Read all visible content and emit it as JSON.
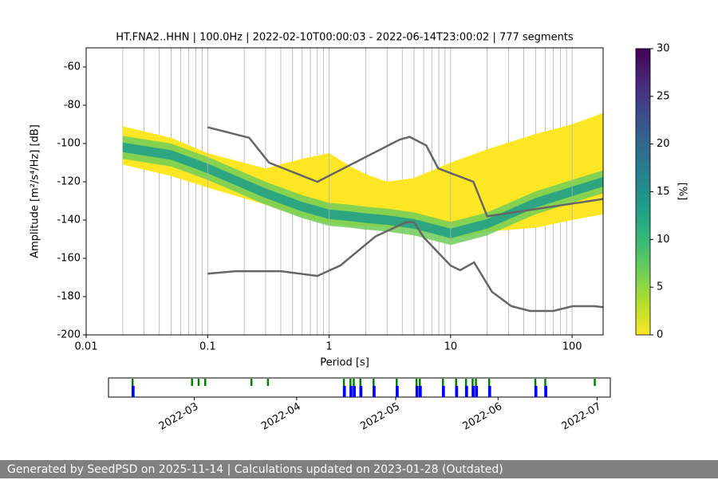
{
  "chart_data": [
    {
      "type": "ppsd",
      "title": "HT.FNA2..HHN | 100.0Hz | 2022-02-10T00:00:03 - 2022-06-14T23:00:02 | 777 segments",
      "xlabel": "Period [s]",
      "ylabel": "Amplitude [m²/s⁴/Hz] [dB]",
      "log_x": true,
      "xlim": [
        0.01,
        180
      ],
      "ylim": [
        -200,
        -50
      ],
      "xticks": [
        0.01,
        0.1,
        1,
        10,
        100
      ],
      "yticks": [
        -200,
        -180,
        -160,
        -140,
        -120,
        -100,
        -80,
        -60
      ],
      "xgrid": [
        0.02,
        0.03,
        0.04,
        0.05,
        0.06,
        0.07,
        0.08,
        0.09,
        0.2,
        0.3,
        0.4,
        0.5,
        0.6,
        0.7,
        0.8,
        0.9,
        2,
        3,
        4,
        5,
        6,
        7,
        8,
        9,
        20,
        30,
        40,
        50,
        60,
        70,
        80,
        90
      ],
      "density": {
        "periods": [
          0.02,
          0.05,
          0.1,
          0.3,
          0.6,
          1,
          1.5,
          2,
          3,
          5,
          10,
          20,
          50,
          100,
          180
        ],
        "upper": [
          -91,
          -97,
          -105,
          -113,
          -108,
          -105,
          -112,
          -116,
          -120,
          -118,
          -110,
          -103,
          -95,
          -90,
          -84
        ],
        "lower": [
          -111,
          -117,
          -123,
          -132,
          -138,
          -142,
          -143,
          -143,
          -144,
          -144,
          -150,
          -146,
          -144,
          -140,
          -137
        ],
        "mode": [
          -102,
          -106,
          -113,
          -126,
          -133,
          -137,
          -138,
          -139,
          -140,
          -142,
          -147,
          -142,
          -131,
          -125,
          -120
        ]
      },
      "noise_models": [
        {
          "color": "#666666",
          "x": [
            0.1,
            0.22,
            0.32,
            0.8,
            3.8,
            4.6,
            6.3,
            7.9,
            15.4,
            20,
            180
          ],
          "y": [
            -91.5,
            -97,
            -110,
            -120,
            -98,
            -96.5,
            -101,
            -113,
            -120,
            -138,
            -129
          ]
        },
        {
          "color": "#666666",
          "x": [
            0.1,
            0.17,
            0.4,
            0.8,
            1.24,
            2.4,
            4.3,
            5,
            6,
            10,
            12,
            15.6,
            21.9,
            31.6,
            45,
            70,
            101,
            154,
            180
          ],
          "y": [
            -168,
            -166.7,
            -166.7,
            -169.2,
            -163.7,
            -148.6,
            -141.1,
            -141.1,
            -149,
            -163.8,
            -166.2,
            -162.1,
            -177.5,
            -185,
            -187.5,
            -187.5,
            -185,
            -185,
            -185.5
          ]
        }
      ],
      "colorbar": {
        "label": "[%]",
        "lim": [
          0,
          30
        ],
        "ticks": [
          0,
          5,
          10,
          15,
          20,
          25,
          30
        ],
        "colormap": [
          "#fde725",
          "#b5de2b",
          "#6ece58",
          "#35b779",
          "#1f9e89",
          "#26828e",
          "#31688e",
          "#3e4989",
          "#482878",
          "#440154"
        ]
      }
    },
    {
      "type": "timeline",
      "xlim": [
        "2022-02-03",
        "2022-07-05"
      ],
      "xticks": [
        {
          "value": "2022-03-01",
          "label": "2022-03"
        },
        {
          "value": "2022-04-01",
          "label": "2022-04"
        },
        {
          "value": "2022-05-01",
          "label": "2022-05"
        },
        {
          "value": "2022-06-01",
          "label": "2022-06"
        },
        {
          "value": "2022-07-01",
          "label": "2022-07"
        }
      ],
      "data_color": "#008000",
      "used_color": "#0000ff",
      "data_dates": [
        "2022-02-10",
        "2022-02-28",
        "2022-03-02",
        "2022-03-04",
        "2022-03-18",
        "2022-03-23",
        "2022-04-15",
        "2022-04-17",
        "2022-04-18",
        "2022-04-20",
        "2022-04-24",
        "2022-05-01",
        "2022-05-07",
        "2022-05-08",
        "2022-05-15",
        "2022-05-19",
        "2022-05-22",
        "2022-05-24",
        "2022-05-25",
        "2022-05-29",
        "2022-06-12",
        "2022-06-15",
        "2022-06-30"
      ],
      "used_dates": [
        "2022-02-10",
        "2022-04-15",
        "2022-04-17",
        "2022-04-18",
        "2022-04-20",
        "2022-04-24",
        "2022-05-01",
        "2022-05-07",
        "2022-05-08",
        "2022-05-15",
        "2022-05-19",
        "2022-05-22",
        "2022-05-24",
        "2022-05-25",
        "2022-05-29",
        "2022-06-12",
        "2022-06-15"
      ]
    }
  ],
  "footer": "Generated by SeedPSD on 2025-11-14 | Calculations updated on 2023-01-28 (Outdated)"
}
